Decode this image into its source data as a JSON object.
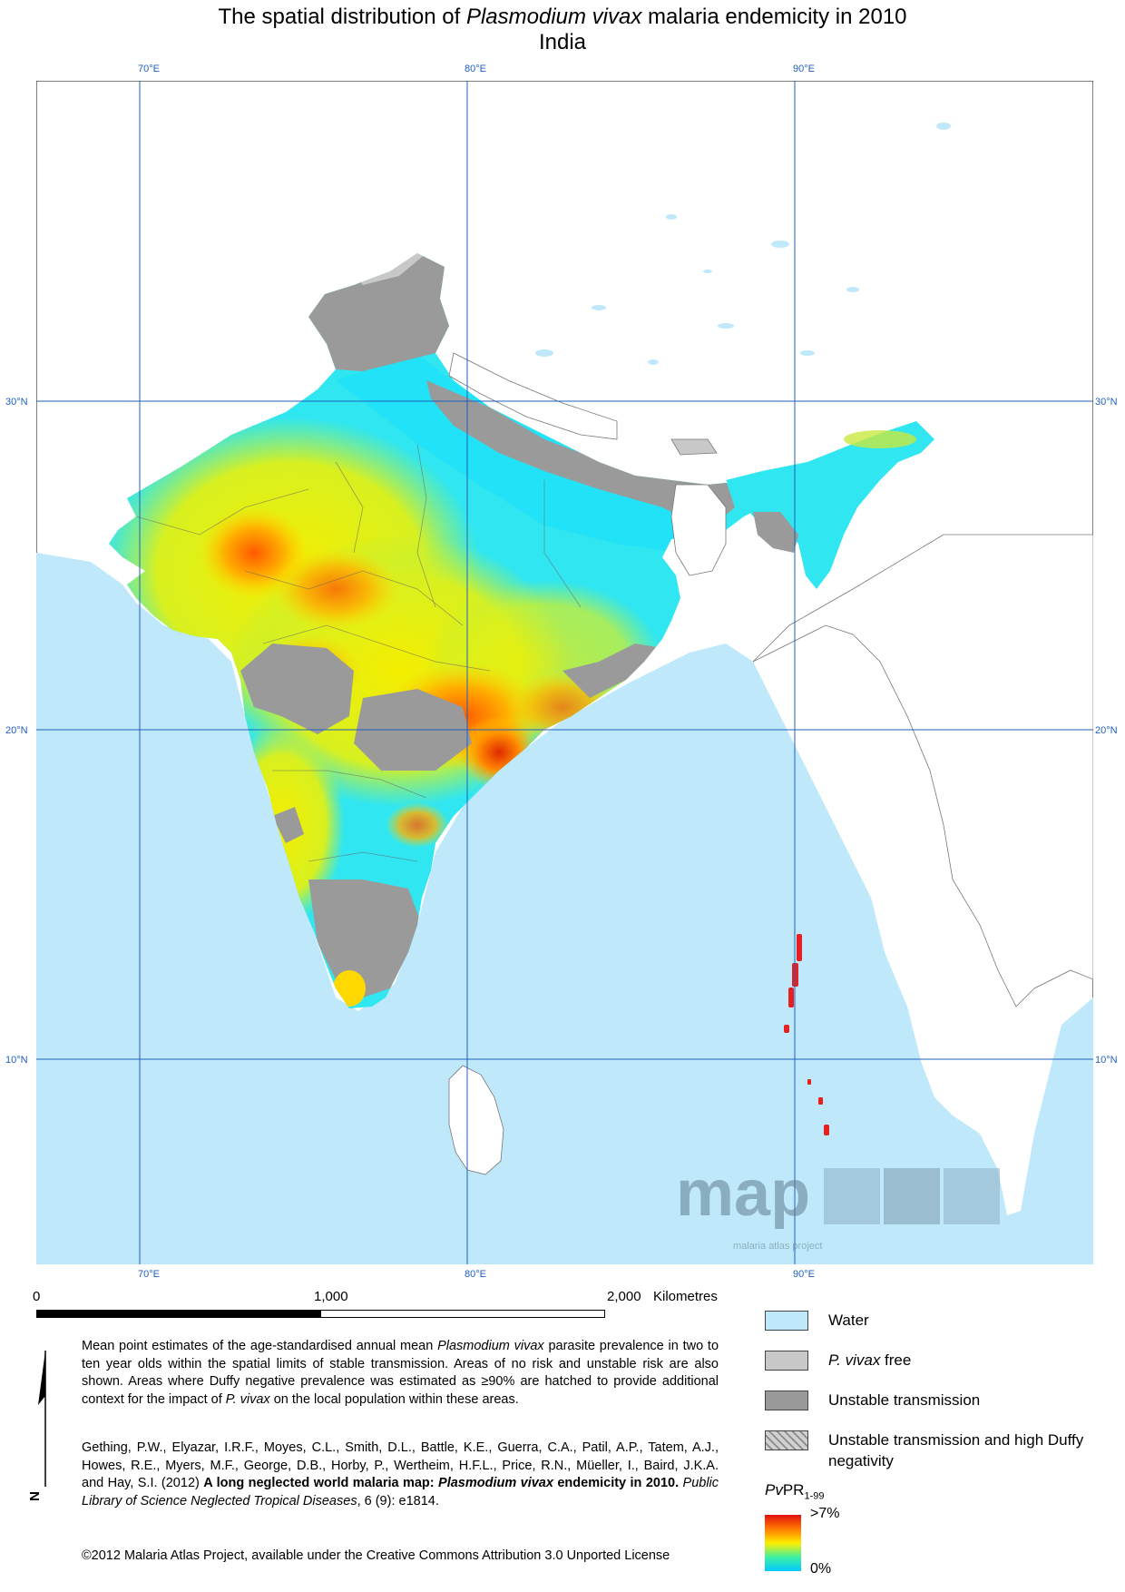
{
  "title": {
    "pre": "The spatial distribution of ",
    "species": "Plasmodium vivax",
    "post": " malaria endemicity in 2010"
  },
  "subtitle": "India",
  "graticule": {
    "longitudes": [
      "70°E",
      "80°E",
      "90°E"
    ],
    "latitudes": [
      "30°N",
      "20°N",
      "10°N"
    ]
  },
  "scale": {
    "zero": "0",
    "mid": "1,000",
    "max": "2,000",
    "unit": "Kilometres"
  },
  "description": {
    "p1": "Mean point estimates of the age-standardised annual mean ",
    "p1_species": "Plasmodium vivax",
    "p2": " parasite prevalence in two to ten year olds within the spatial limits of stable transmission. Areas of no risk and unstable risk are also shown. Areas where Duffy negative prevalence was estimated as ≥90% are hatched to provide additional context for the impact of ",
    "p2_species": "P. vivax",
    "p3": " on the local population within these areas."
  },
  "citation": {
    "authors": "Gething, P.W., Elyazar, I.R.F., Moyes, C.L., Smith, D.L., Battle, K.E., Guerra, C.A., Patil, A.P., Tatem, A.J., Howes, R.E., Myers, M.F., George, D.B., Horby, P., Wertheim, H.F.L., Price, R.N., Müeller, I., Baird, J.K.A. and Hay, S.I. (2012) ",
    "title_a": "A long neglected world malaria map: ",
    "title_b": "Plasmodium vivax",
    "title_c": " endemicity in 2010.",
    "journal": " Public Library of Science Neglected Tropical Diseases",
    "issue": ", 6 (9): e1814."
  },
  "license": "©2012 Malaria Atlas Project, available under the Creative Commons Attribution 3.0 Unported License",
  "north": "N",
  "logo": {
    "word": "map",
    "tag": "malaria atlas project"
  },
  "legend": {
    "items": [
      {
        "label": "Water",
        "color": "#bfe8fb"
      },
      {
        "label_i": "P. vivax",
        "label_r": " free",
        "color": "#c8c8c8"
      },
      {
        "label": "Unstable transmission",
        "color": "#999999"
      },
      {
        "label": "Unstable transmission and high Duffy negativity",
        "color": "#d0d0d0"
      }
    ],
    "ramp_title_i": "Pv",
    "ramp_title_r": "PR",
    "ramp_title_sub": "1-99",
    "ramp_high": ">7%",
    "ramp_low": "0%"
  },
  "colors": {
    "water": "#bfe8fb",
    "land": "#ffffff",
    "unstable": "#999999",
    "free": "#c8c8c8",
    "grid": "#1f5fbf"
  }
}
